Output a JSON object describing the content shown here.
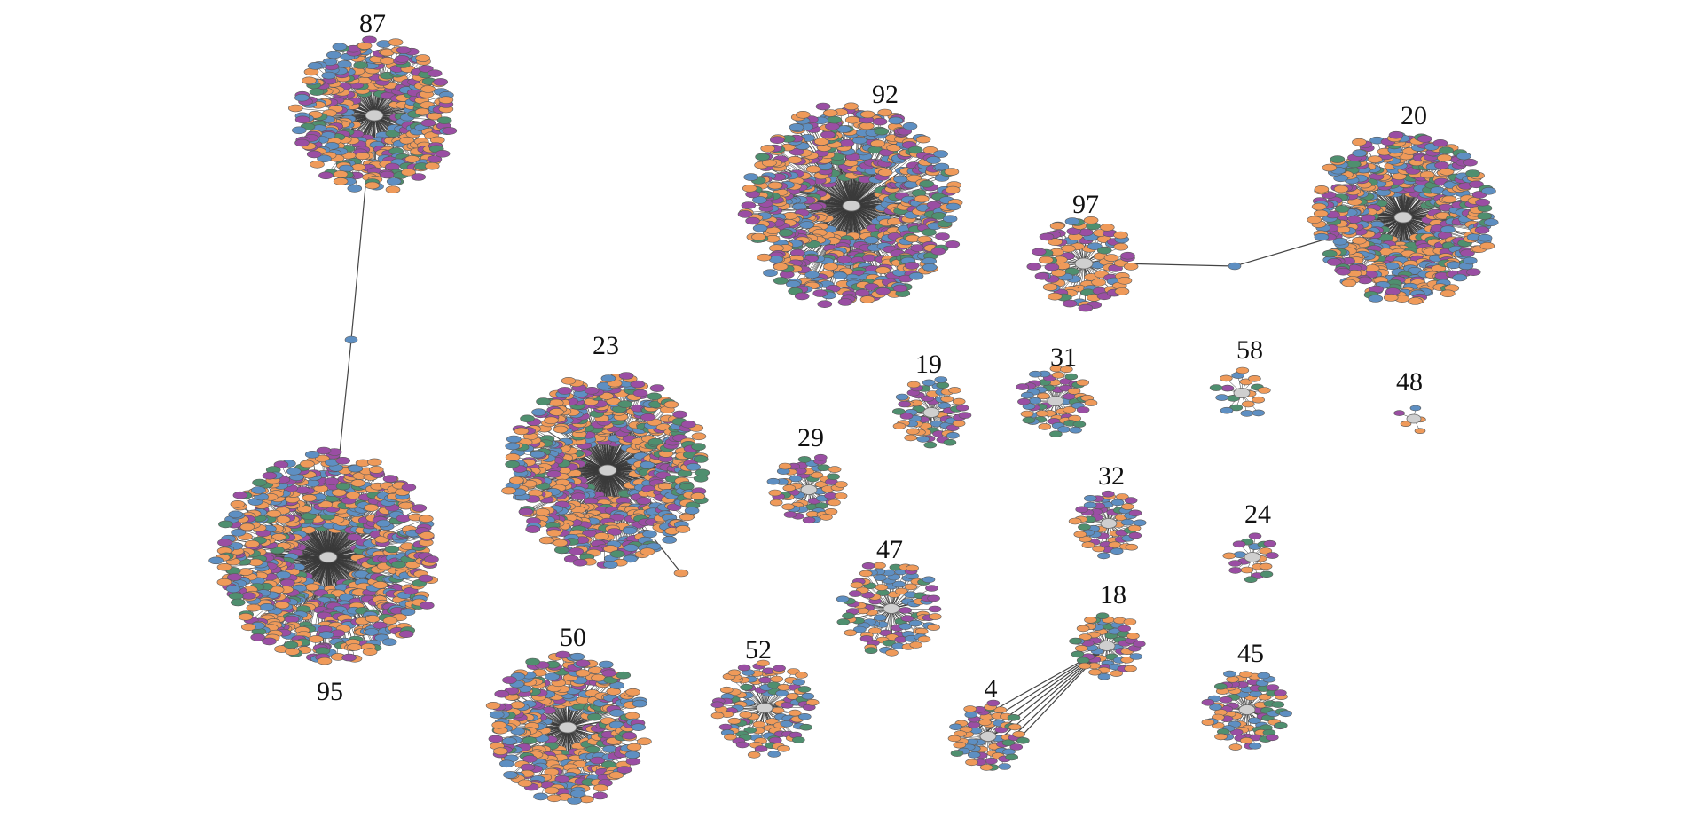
{
  "colors": {
    "orange": "#ef9a5a",
    "blue": "#5e8fc2",
    "purple": "#9a4ea3",
    "green": "#4f8f6f",
    "hub": "#cfcfcf",
    "edge": "#3a3a3a"
  },
  "clusters": [
    {
      "id": "87",
      "label": "87",
      "size": "large"
    },
    {
      "id": "92",
      "label": "92",
      "size": "large"
    },
    {
      "id": "97",
      "label": "97",
      "size": "medium"
    },
    {
      "id": "20",
      "label": "20",
      "size": "large"
    },
    {
      "id": "23",
      "label": "23",
      "size": "large"
    },
    {
      "id": "95",
      "label": "95",
      "size": "large"
    },
    {
      "id": "19",
      "label": "19",
      "size": "small"
    },
    {
      "id": "31",
      "label": "31",
      "size": "small"
    },
    {
      "id": "58",
      "label": "58",
      "size": "tiny"
    },
    {
      "id": "48",
      "label": "48",
      "size": "tiny"
    },
    {
      "id": "29",
      "label": "29",
      "size": "small"
    },
    {
      "id": "32",
      "label": "32",
      "size": "small"
    },
    {
      "id": "24",
      "label": "24",
      "size": "tiny"
    },
    {
      "id": "47",
      "label": "47",
      "size": "small"
    },
    {
      "id": "18",
      "label": "18",
      "size": "small"
    },
    {
      "id": "50",
      "label": "50",
      "size": "large"
    },
    {
      "id": "52",
      "label": "52",
      "size": "small"
    },
    {
      "id": "4",
      "label": "4",
      "size": "small"
    },
    {
      "id": "45",
      "label": "45",
      "size": "small"
    }
  ],
  "links": [
    {
      "from": "87",
      "to": "95",
      "via_node": true
    },
    {
      "from": "97",
      "to": "20",
      "via_node": true
    },
    {
      "from": "18",
      "to": "4",
      "multi": true
    }
  ]
}
